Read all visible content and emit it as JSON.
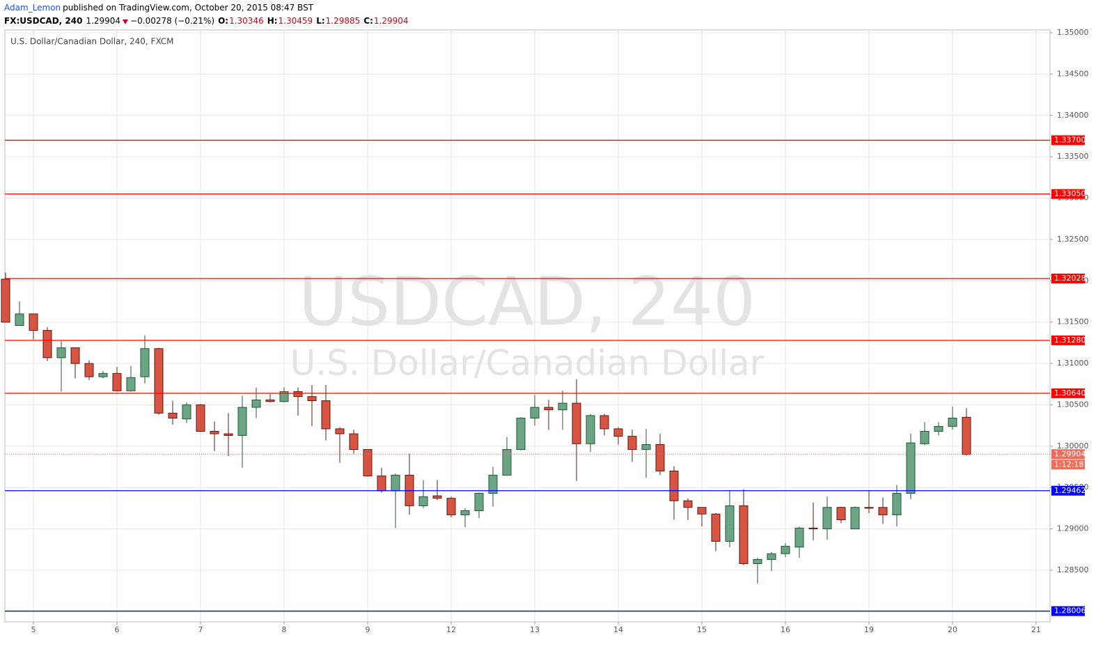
{
  "header": {
    "author": "Adam_Lemon",
    "published": "published on TradingView.com, October 20, 2015 08:47 BST",
    "symbol": "FX:USDCAD, 240",
    "last": "1.29904",
    "change": "−0.00278 (−0.21%)",
    "ohlc": [
      {
        "label": "O:",
        "value": "1.30346"
      },
      {
        "label": "H:",
        "value": "1.30459"
      },
      {
        "label": "L:",
        "value": "1.29885"
      },
      {
        "label": "C:",
        "value": "1.29904"
      }
    ]
  },
  "chart_data": {
    "type": "candlestick",
    "legend": "U.S. Dollar/Canadian Dollar, 240, FXCM",
    "watermark": "USDCAD, 240",
    "watermark_subtitle": "U.S. Dollar/Canadian Dollar",
    "up_color": "#6ba583",
    "up_border": "#225437",
    "down_color": "#d75442",
    "down_border": "#5b1a13",
    "open": [
      1.3202,
      1.3146,
      1.316,
      1.314,
      1.3107,
      1.3119,
      1.31,
      1.3084,
      1.3088,
      1.3067,
      1.3084,
      1.3118,
      1.304,
      1.3033,
      1.305,
      1.3018,
      1.3015,
      1.3013,
      1.3047,
      1.3056,
      1.3054,
      1.3066,
      1.306,
      1.3055,
      1.3021,
      1.3015,
      1.2996,
      1.2964,
      1.2946,
      1.2965,
      1.2928,
      1.294,
      1.2937,
      1.2917,
      1.2922,
      1.2943,
      1.2965,
      1.2996,
      1.3034,
      1.3047,
      1.3044,
      1.3052,
      1.3003,
      1.3037,
      1.3021,
      1.3012,
      1.2996,
      1.3002,
      1.297,
      1.2934,
      1.2926,
      1.2918,
      1.2885,
      1.2928,
      1.2858,
      1.2863,
      1.287,
      1.2878,
      1.2901,
      1.29,
      1.2926,
      1.29,
      1.2926,
      1.2926,
      1.2917,
      1.2943,
      1.3003,
      1.3018,
      1.3024,
      1.3035
    ],
    "high": [
      1.321,
      1.3175,
      1.316,
      1.3144,
      1.3127,
      1.3119,
      1.3104,
      1.3091,
      1.3096,
      1.3097,
      1.3134,
      1.3119,
      1.3055,
      1.3053,
      1.3051,
      1.303,
      1.304,
      1.3061,
      1.3071,
      1.3063,
      1.3071,
      1.3071,
      1.3074,
      1.3074,
      1.3023,
      1.302,
      1.2996,
      1.2974,
      1.2967,
      1.2991,
      1.2959,
      1.2959,
      1.2939,
      1.2925,
      1.2944,
      1.2975,
      1.3011,
      1.3035,
      1.3062,
      1.3056,
      1.3067,
      1.3081,
      1.3039,
      1.3039,
      1.3023,
      1.302,
      1.3021,
      1.3015,
      1.2976,
      1.2937,
      1.2926,
      1.2919,
      1.2947,
      1.2948,
      1.2865,
      1.2872,
      1.2883,
      1.2903,
      1.2932,
      1.2939,
      1.2927,
      1.2927,
      1.2947,
      1.2938,
      1.2953,
      1.3015,
      1.3029,
      1.3029,
      1.3048,
      1.3046
    ],
    "low": [
      1.315,
      1.3146,
      1.3129,
      1.3103,
      1.3066,
      1.3082,
      1.308,
      1.3082,
      1.3066,
      1.3066,
      1.3076,
      1.3038,
      1.3026,
      1.3028,
      1.3017,
      1.2994,
      1.2988,
      1.2974,
      1.3034,
      1.3053,
      1.3053,
      1.3037,
      1.3024,
      1.3007,
      1.298,
      1.2991,
      1.2963,
      1.2944,
      1.2901,
      1.2917,
      1.2925,
      1.2935,
      1.2914,
      1.2902,
      1.2913,
      1.2927,
      1.2965,
      1.2995,
      1.3025,
      1.302,
      1.302,
      1.2958,
      1.2993,
      1.3013,
      1.3002,
      1.2981,
      1.2962,
      1.2965,
      1.2911,
      1.2911,
      1.2903,
      1.2873,
      1.2878,
      1.2856,
      1.2834,
      1.2849,
      1.2866,
      1.2865,
      1.2886,
      1.2887,
      1.2907,
      1.29,
      1.2919,
      1.2906,
      1.2903,
      1.2936,
      1.3001,
      1.3013,
      1.302,
      1.2989
    ],
    "close": [
      1.315,
      1.316,
      1.314,
      1.3107,
      1.3119,
      1.31,
      1.3084,
      1.3088,
      1.3067,
      1.3083,
      1.3118,
      1.304,
      1.3034,
      1.305,
      1.3018,
      1.3015,
      1.3013,
      1.3047,
      1.3056,
      1.3054,
      1.3066,
      1.306,
      1.3055,
      1.3021,
      1.3015,
      1.2996,
      1.2964,
      1.2946,
      1.2965,
      1.2928,
      1.2939,
      1.2937,
      1.2917,
      1.2922,
      1.2943,
      1.2965,
      1.2996,
      1.3034,
      1.3047,
      1.3044,
      1.3052,
      1.3003,
      1.3037,
      1.3021,
      1.3012,
      1.2996,
      1.3002,
      1.297,
      1.2934,
      1.2926,
      1.2918,
      1.2885,
      1.2928,
      1.2858,
      1.2863,
      1.287,
      1.2879,
      1.2901,
      1.29,
      1.2926,
      1.2911,
      1.2926,
      1.2925,
      1.2917,
      1.2943,
      1.3004,
      1.3018,
      1.3024,
      1.3034,
      1.299
    ],
    "xlim": [
      -0.05,
      75
    ],
    "xticks": [
      {
        "value": 2,
        "label": "5"
      },
      {
        "value": 8,
        "label": "6"
      },
      {
        "value": 14,
        "label": "7"
      },
      {
        "value": 20,
        "label": "8"
      },
      {
        "value": 26,
        "label": "9"
      },
      {
        "value": 32,
        "label": "12"
      },
      {
        "value": 38,
        "label": "13"
      },
      {
        "value": 44,
        "label": "14"
      },
      {
        "value": 50,
        "label": "15"
      },
      {
        "value": 56,
        "label": "16"
      },
      {
        "value": 62,
        "label": "19"
      },
      {
        "value": 68,
        "label": "20"
      },
      {
        "value": 74,
        "label": "21"
      }
    ],
    "ylim": [
      1.27877,
      1.35034
    ],
    "yticks": [
      {
        "value": 1.285,
        "label": "1.28500"
      },
      {
        "value": 1.29,
        "label": "1.29000"
      },
      {
        "value": 1.295,
        "label": "1.29500"
      },
      {
        "value": 1.3,
        "label": "1.30000"
      },
      {
        "value": 1.305,
        "label": "1.30500"
      },
      {
        "value": 1.31,
        "label": "1.31000"
      },
      {
        "value": 1.315,
        "label": "1.31500"
      },
      {
        "value": 1.32,
        "label": "1.32000"
      },
      {
        "value": 1.325,
        "label": "1.32500"
      },
      {
        "value": 1.33,
        "label": "1.33000"
      },
      {
        "value": 1.335,
        "label": "1.33500"
      },
      {
        "value": 1.34,
        "label": "1.34000"
      },
      {
        "value": 1.345,
        "label": "1.34500"
      },
      {
        "value": 1.35,
        "label": "1.35000"
      }
    ],
    "grid": true,
    "levels": [
      {
        "value": 1.337,
        "label": "1.33700",
        "color": "#ff0000"
      },
      {
        "value": 1.3305,
        "label": "1.33050",
        "color": "#ff0000"
      },
      {
        "value": 1.32028,
        "label": "1.32028",
        "color": "#ff0000"
      },
      {
        "value": 1.3128,
        "label": "1.31280",
        "color": "#ff0000"
      },
      {
        "value": 1.3064,
        "label": "1.30640",
        "color": "#ff0000"
      },
      {
        "value": 1.29462,
        "label": "1.29462",
        "color": "#0000ff"
      },
      {
        "value": 1.28006,
        "label": "1.28006",
        "color": "#0000ff"
      }
    ],
    "current_price": {
      "value": 1.29904,
      "label": "1.29904",
      "color": "#ef6c5a"
    },
    "countdown": "1:12:18"
  }
}
